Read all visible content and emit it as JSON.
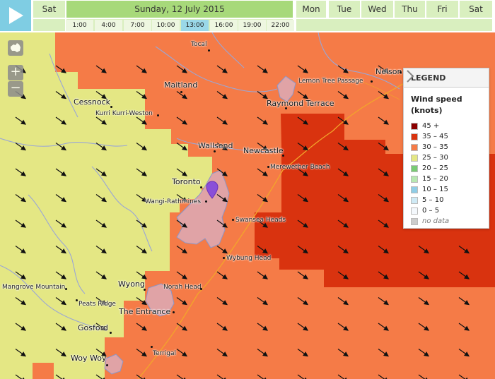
{
  "playback": {
    "icon": "play-icon"
  },
  "days": {
    "prev": "Sat",
    "current": "Sunday, 12 July 2015",
    "next": [
      "Mon",
      "Tue",
      "Wed",
      "Thu",
      "Fri",
      "Sat"
    ]
  },
  "hours": {
    "labels": [
      "1:00",
      "4:00",
      "7:00",
      "10:00",
      "13:00",
      "16:00",
      "19:00",
      "22:00"
    ],
    "selected": "13:00"
  },
  "map_controls": {
    "layers_icon": "australia-map-icon",
    "zoom_in": "+",
    "zoom_out": "−"
  },
  "legend": {
    "title": "LEGEND",
    "toggle_icon": "chevron-right-icon",
    "variable": "Wind speed (knots)",
    "items": [
      {
        "label": "45 +",
        "color": "#8b0000"
      },
      {
        "label": "35 – 45",
        "color": "#d9330f"
      },
      {
        "label": "30 – 35",
        "color": "#f57b47"
      },
      {
        "label": "25 – 30",
        "color": "#e4e784"
      },
      {
        "label": "20 – 25",
        "color": "#79cb73"
      },
      {
        "label": "15 – 20",
        "color": "#b7e8b0"
      },
      {
        "label": "10 – 15",
        "color": "#8fcde6"
      },
      {
        "label": "5 – 10",
        "color": "#cfeaf5"
      },
      {
        "label": "0 – 5",
        "color": "#f4f8fc"
      },
      {
        "label": "no data",
        "color": "#cccccc"
      }
    ]
  },
  "map": {
    "wind_direction_icon": "arrow-southeast-icon",
    "marker_icon": "location-pin-icon",
    "towns": {
      "maitland": "Maitland",
      "cessnock": "Cessnock",
      "raymond_terrace": "Raymond Terrace",
      "wallsend": "Wallsend",
      "newcastle": "Newcastle",
      "toronto": "Toronto",
      "wyong": "Wyong",
      "the_entrance": "The Entrance",
      "gosford": "Gosford",
      "woy_woy": "Woy Woy",
      "nelson": "Nelson"
    },
    "places": {
      "tocal": "Tocal",
      "lemon_tree_passage": "Lemon Tree Passage",
      "kurri_kurri": "Kurri Kurri-Weston",
      "merewether_beach": "Merewether Beach",
      "wangi_rathmines": "Wangi-Rathmines",
      "swansea_heads": "Swansea Heads",
      "wybung_head": "Wybung Head",
      "norah_head": "Norah Head",
      "mangrove_mountain": "Mangrove Mountain",
      "peats_ridge": "Peats Ridge",
      "terrigal": "Terrigal"
    }
  }
}
